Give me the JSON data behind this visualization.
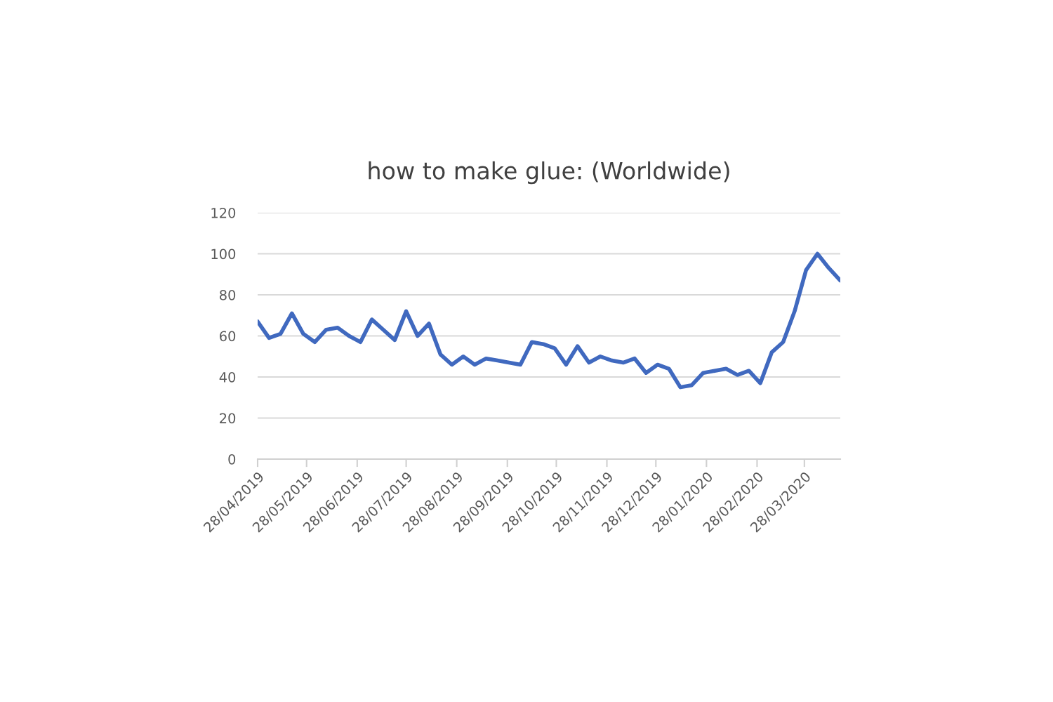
{
  "chart_data": {
    "type": "line",
    "title": "how to make glue: (Worldwide)",
    "x": [
      "2019-04-28",
      "2019-05-05",
      "2019-05-12",
      "2019-05-19",
      "2019-05-26",
      "2019-06-02",
      "2019-06-09",
      "2019-06-16",
      "2019-06-23",
      "2019-06-30",
      "2019-07-07",
      "2019-07-14",
      "2019-07-21",
      "2019-07-28",
      "2019-08-04",
      "2019-08-11",
      "2019-08-18",
      "2019-08-25",
      "2019-09-01",
      "2019-09-08",
      "2019-09-15",
      "2019-09-22",
      "2019-09-29",
      "2019-10-06",
      "2019-10-13",
      "2019-10-20",
      "2019-10-27",
      "2019-11-03",
      "2019-11-10",
      "2019-11-17",
      "2019-11-24",
      "2019-12-01",
      "2019-12-08",
      "2019-12-15",
      "2019-12-22",
      "2019-12-29",
      "2020-01-05",
      "2020-01-12",
      "2020-01-19",
      "2020-01-26",
      "2020-02-02",
      "2020-02-09",
      "2020-02-16",
      "2020-02-23",
      "2020-03-01",
      "2020-03-08",
      "2020-03-15",
      "2020-03-22",
      "2020-03-29",
      "2020-04-05",
      "2020-04-12",
      "2020-04-19"
    ],
    "series": [
      {
        "color": "#4069bf",
        "values": [
          67,
          59,
          61,
          71,
          61,
          57,
          63,
          64,
          60,
          57,
          68,
          63,
          58,
          72,
          60,
          66,
          51,
          46,
          50,
          46,
          49,
          48,
          47,
          46,
          57,
          56,
          54,
          46,
          55,
          47,
          50,
          48,
          47,
          49,
          42,
          46,
          44,
          35,
          36,
          42,
          43,
          44,
          41,
          43,
          37,
          52,
          57,
          72,
          92,
          100,
          93,
          87
        ]
      }
    ],
    "xlim": [
      "2019-04-28",
      "2020-04-19"
    ],
    "xticks": [
      {
        "value": "2019-04-28",
        "label": "28/04/2019"
      },
      {
        "value": "2019-05-28",
        "label": "28/05/2019"
      },
      {
        "value": "2019-06-28",
        "label": "28/06/2019"
      },
      {
        "value": "2019-07-28",
        "label": "28/07/2019"
      },
      {
        "value": "2019-08-28",
        "label": "28/08/2019"
      },
      {
        "value": "2019-09-28",
        "label": "28/09/2019"
      },
      {
        "value": "2019-10-28",
        "label": "28/10/2019"
      },
      {
        "value": "2019-11-28",
        "label": "28/11/2019"
      },
      {
        "value": "2019-12-28",
        "label": "28/12/2019"
      },
      {
        "value": "2020-01-28",
        "label": "28/01/2020"
      },
      {
        "value": "2020-02-28",
        "label": "28/02/2020"
      },
      {
        "value": "2020-03-28",
        "label": "28/03/2020"
      }
    ],
    "ylim": [
      0,
      120
    ],
    "yticks": [
      0,
      20,
      40,
      60,
      80,
      100,
      120
    ],
    "grid": "y",
    "legend": false,
    "marker": "none",
    "line_style": "solid"
  }
}
